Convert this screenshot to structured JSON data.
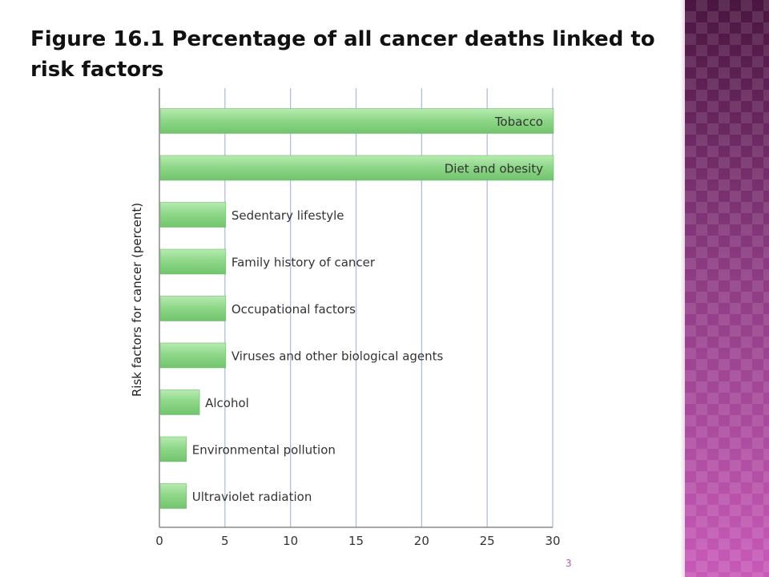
{
  "slide": {
    "title": "Figure 16.1 Percentage of all cancer deaths linked to risk factors",
    "page_number": "3"
  },
  "chart_data": {
    "type": "bar",
    "orientation": "horizontal",
    "ylabel": "Risk factors for cancer (percent)",
    "xlabel": "",
    "xlim": [
      0,
      30
    ],
    "xticks": [
      0,
      5,
      10,
      15,
      20,
      25,
      30
    ],
    "grid": true,
    "categories": [
      "Tobacco",
      "Diet and obesity",
      "Sedentary lifestyle",
      "Family history of cancer",
      "Occupational factors",
      "Viruses and other biological agents",
      "Alcohol",
      "Environmental pollution",
      "Ultraviolet radiation"
    ],
    "values": [
      30,
      30,
      5,
      5,
      5,
      5,
      3,
      2,
      2
    ],
    "bar_color": "#8fd88a",
    "grid_color": "#a9b8dc"
  }
}
